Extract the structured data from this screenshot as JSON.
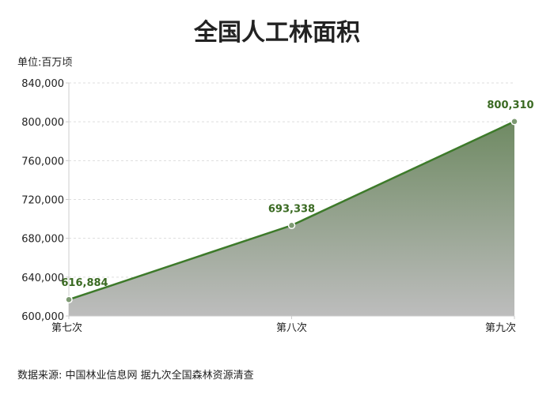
{
  "chart_data": {
    "type": "area",
    "title": "全国人工林面积",
    "ylabel": "单位:百万顷",
    "xlabel": "",
    "categories": [
      "第七次",
      "第八次",
      "第九次"
    ],
    "values": [
      616884,
      693338,
      800310
    ],
    "data_labels": [
      "616,884",
      "693,338",
      "800,310"
    ],
    "ylim": [
      600000,
      840000
    ],
    "yticks": [
      600000,
      640000,
      680000,
      720000,
      760000,
      800000,
      840000
    ],
    "ytick_labels": [
      "600,000",
      "640,000",
      "680,000",
      "720,000",
      "760,000",
      "800,000",
      "840,000"
    ],
    "grid": "horizontal dashed",
    "legend": "none",
    "colors": {
      "line": "#3d7a2a",
      "fill_top": "#6f8a63",
      "fill_bottom": "#bdbdbd",
      "label": "#3a6a22"
    }
  },
  "source": "数据来源: 中国林业信息网  据九次全国森林资源清查"
}
